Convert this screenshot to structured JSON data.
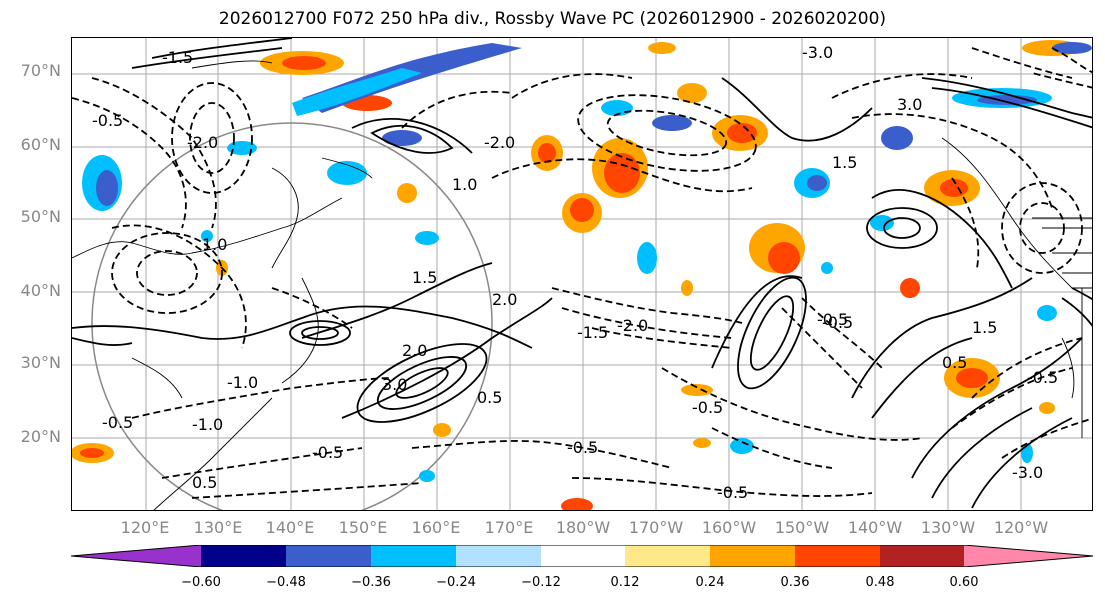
{
  "title": "2026012700 F072 250 hPa div., Rossby Wave PC (2026012900 - 2026020200)",
  "lat_labels": [
    "70°N",
    "60°N",
    "50°N",
    "40°N",
    "30°N",
    "20°N"
  ],
  "lon_labels": [
    "120°E",
    "130°E",
    "140°E",
    "150°E",
    "160°E",
    "170°E",
    "180°W",
    "170°W",
    "160°W",
    "150°W",
    "140°W",
    "130°W",
    "120°W"
  ],
  "colorbar": {
    "ticks": [
      "−0.60",
      "−0.48",
      "−0.36",
      "−0.24",
      "−0.12",
      "0.12",
      "0.24",
      "0.36",
      "0.48",
      "0.60"
    ],
    "colors": [
      "#9932cc",
      "#00008b",
      "#3a5fcd",
      "#00bfff",
      "#b0e2ff",
      "#ffffff",
      "#ffe88a",
      "#ffa500",
      "#ff4500",
      "#b22222",
      "#ff88aa"
    ]
  },
  "contour_labels": [
    "-0.5",
    "-0.5",
    "-0.5",
    "-0.5",
    "-0.5",
    "-0.5",
    "-1.0",
    "-1.0",
    "-1.5",
    "-2.0",
    "-2.0",
    "-3.0",
    "1.0",
    "1.5",
    "1.5",
    "2.0",
    "3.0",
    "0.5",
    "0.5",
    "-1.5",
    "-0.5",
    "1.0",
    "2.0",
    "3.0",
    "-2.0",
    "-0.5",
    "0.5",
    "-0.5",
    "1.5",
    "-3.0"
  ]
}
